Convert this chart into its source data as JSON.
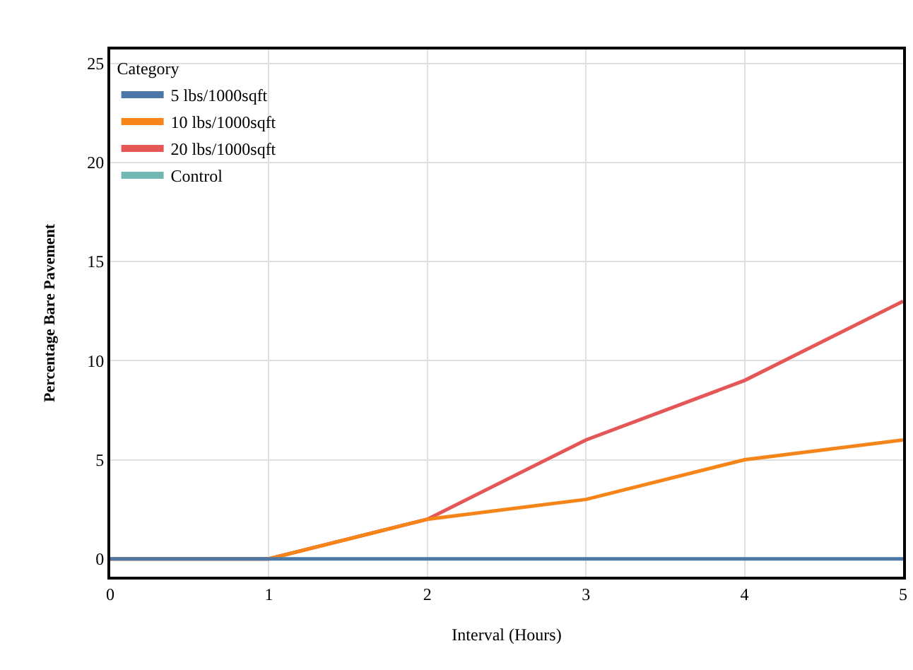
{
  "chart_data": {
    "type": "line",
    "xlabel": "Interval (Hours)",
    "ylabel": "Percentage Bare Pavement",
    "legend_title": "Category",
    "x": [
      0,
      1,
      2,
      3,
      4,
      5
    ],
    "series": [
      {
        "name": "5 lbs/1000sqft",
        "color": "#4c78a8",
        "values": [
          0,
          0,
          0,
          0,
          0,
          0
        ]
      },
      {
        "name": "10 lbs/1000sqft",
        "color": "#f58518",
        "values": [
          0,
          0,
          2,
          3,
          5,
          6
        ]
      },
      {
        "name": "20 lbs/1000sqft",
        "color": "#e45756",
        "values": [
          0,
          0,
          2,
          6,
          9,
          13
        ]
      },
      {
        "name": "Control",
        "color": "#72b7b2",
        "values": [
          null,
          null,
          null,
          null,
          null,
          null
        ]
      }
    ],
    "xlim": [
      0,
      5
    ],
    "ylim": [
      -0.9,
      25.7
    ],
    "xticks": [
      0,
      1,
      2,
      3,
      4,
      5
    ],
    "yticks": [
      0,
      5,
      10,
      15,
      20,
      25
    ],
    "grid": true,
    "legend": "top left",
    "marker": "none",
    "line_style": "solid"
  }
}
